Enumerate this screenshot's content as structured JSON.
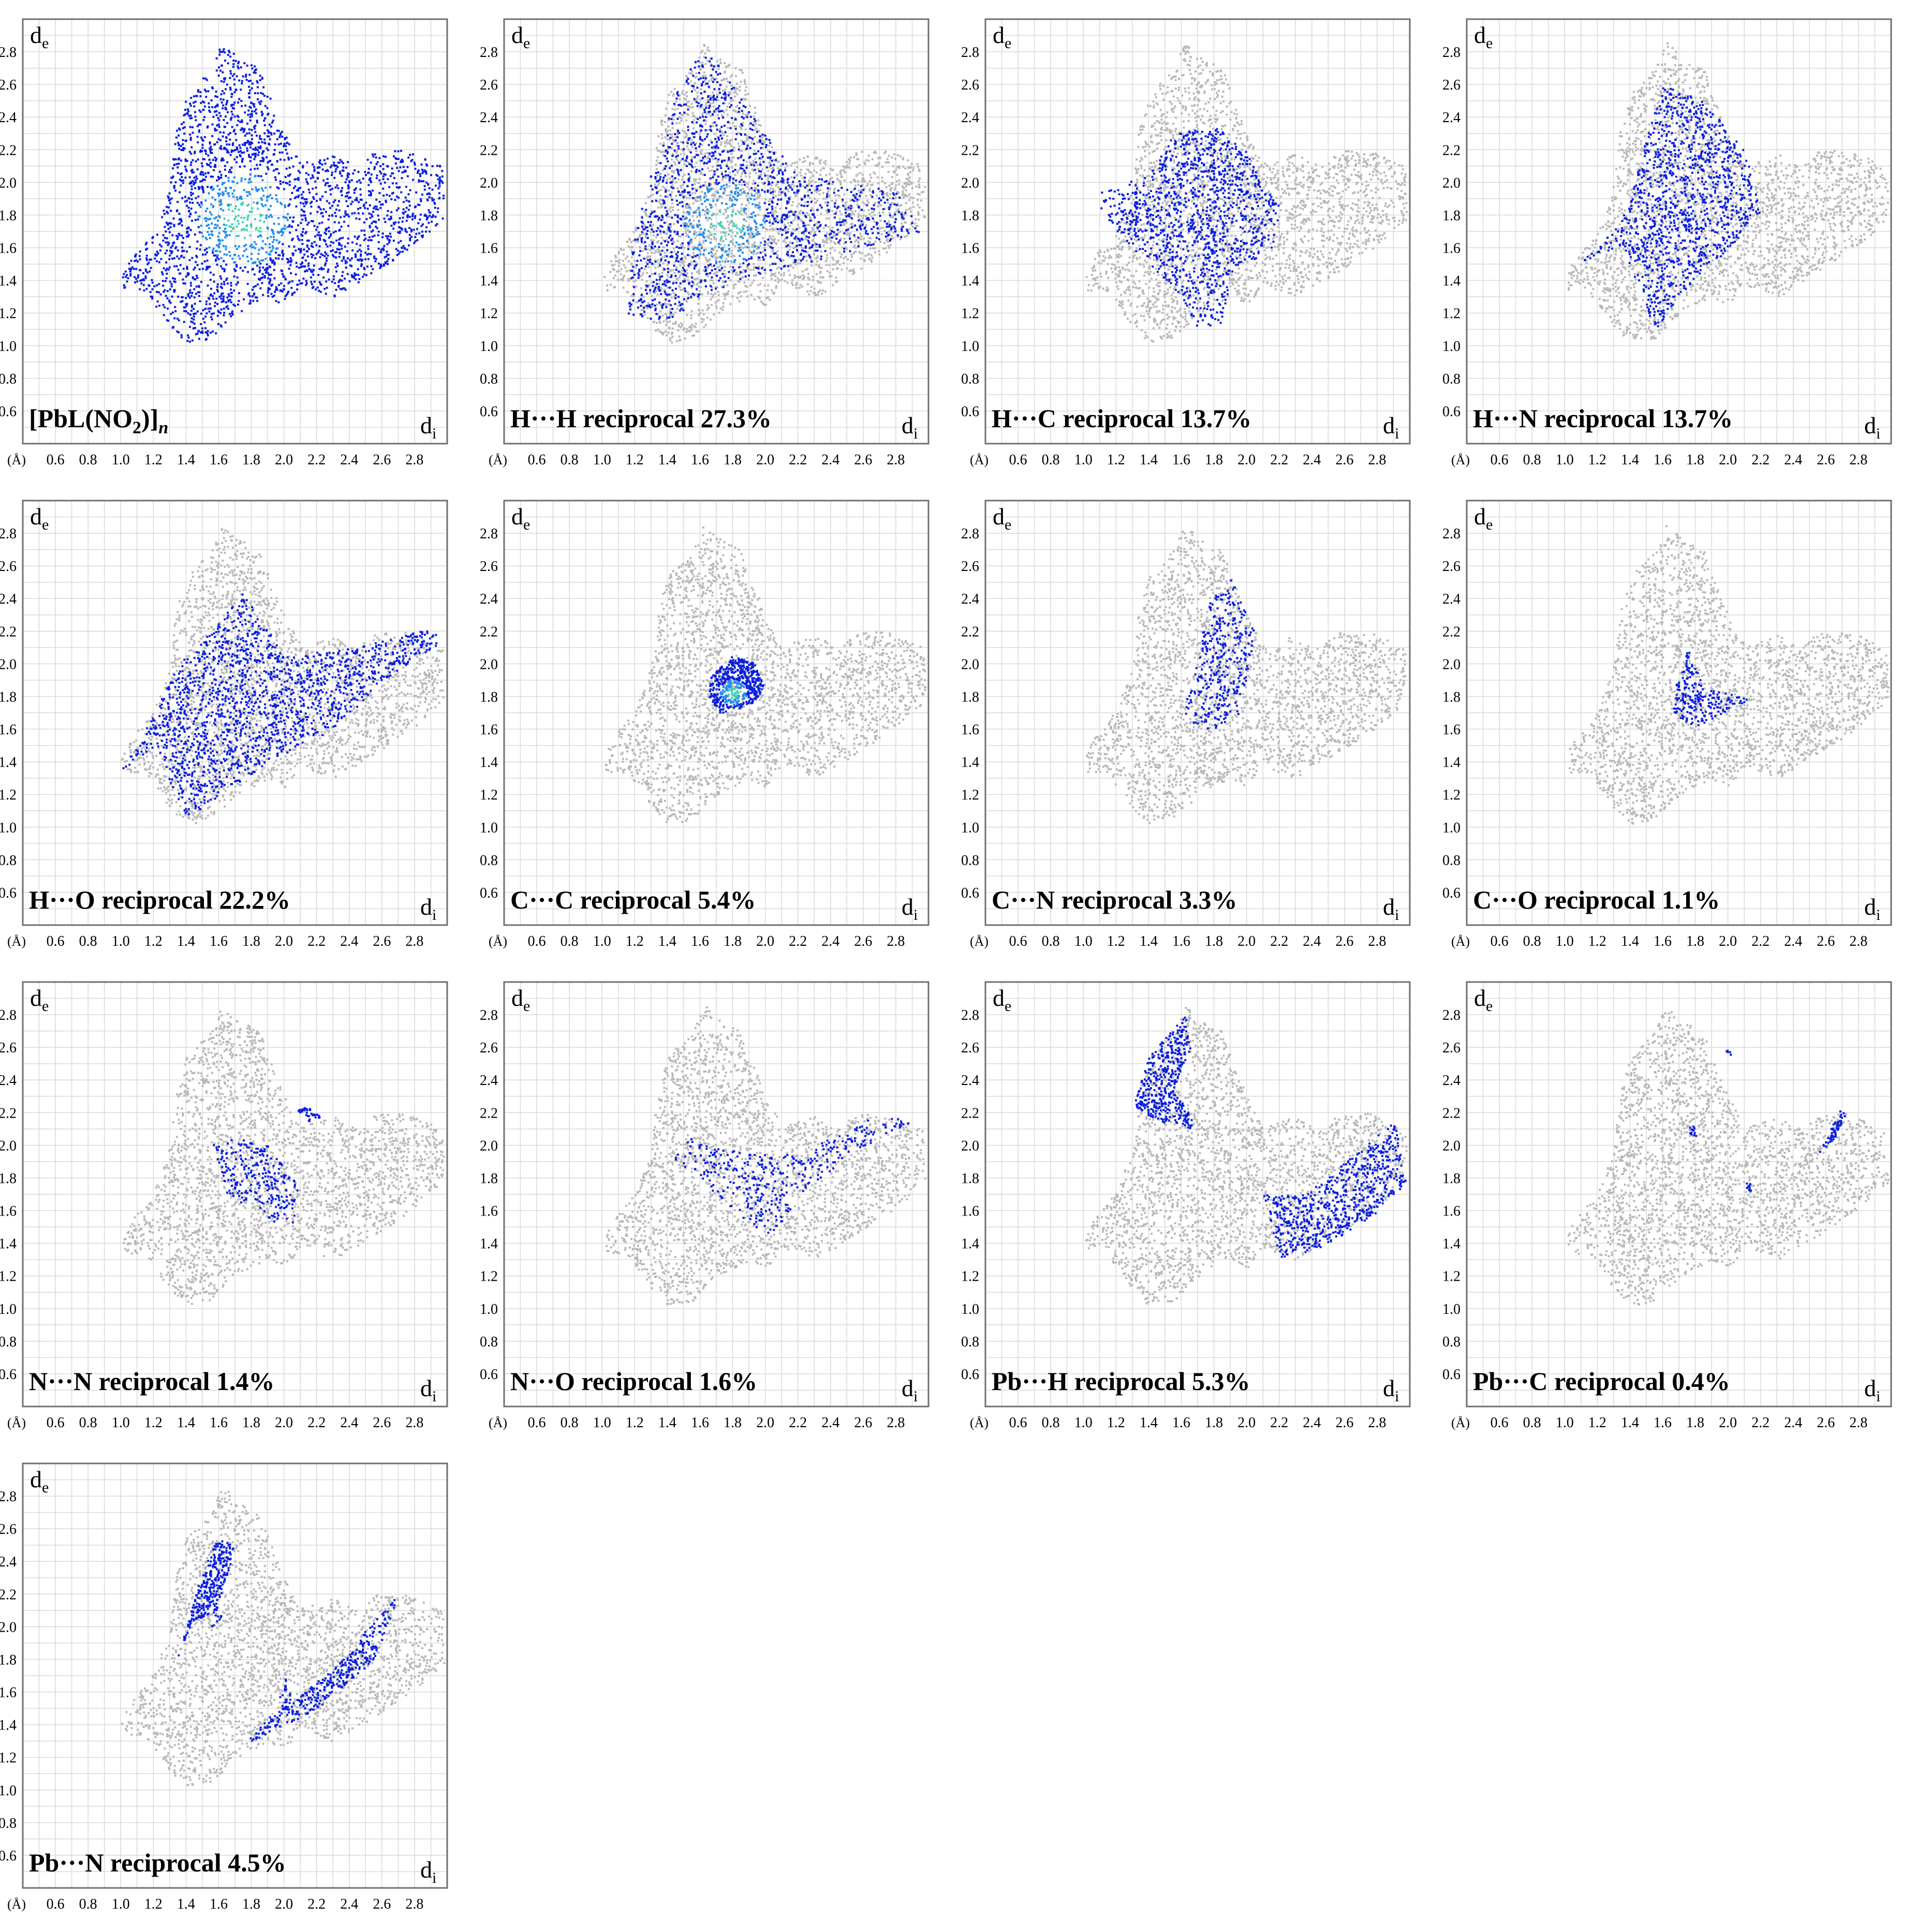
{
  "figure": {
    "x_unit": "(Å)",
    "x_axis_symbol": "d",
    "x_axis_subscript": "i",
    "y_axis_symbol": "d",
    "y_axis_subscript": "e"
  },
  "colors": {
    "background_points": "#b8b8b8",
    "highlight_low": "#0a1edc",
    "highlight_mid": "#1e8cf0",
    "highlight_high": "#3cd2b4",
    "grid": "#d9d9d9",
    "frame": "#6f6f6f"
  },
  "chart_data": [
    {
      "type": "scatter",
      "panel": 1,
      "label": "[PbL(NO2)]n",
      "label_parts": {
        "main": "[PbL(NO",
        "sub": "2",
        "close": ")]",
        "italic_sub": "n"
      },
      "percent": null,
      "contact": "all",
      "xlim": [
        0.4,
        3.0
      ],
      "ylim": [
        0.4,
        3.0
      ],
      "xticks": [
        "0.6",
        "0.8",
        "1.0",
        "1.2",
        "1.4",
        "1.6",
        "1.8",
        "2.0",
        "2.2",
        "2.4",
        "2.6",
        "2.8"
      ],
      "yticks": [
        "0.6",
        "0.8",
        "1.0",
        "1.2",
        "1.4",
        "1.6",
        "1.8",
        "2.0",
        "2.2",
        "2.4",
        "2.6",
        "2.8"
      ],
      "xlabel": "di",
      "ylabel": "de"
    },
    {
      "type": "scatter",
      "panel": 2,
      "label": "H···H reciprocal 27.3%",
      "contact": "H···H",
      "percent": 27.3,
      "xlim": [
        0.4,
        3.0
      ],
      "ylim": [
        0.4,
        3.0
      ]
    },
    {
      "type": "scatter",
      "panel": 3,
      "label": "H···C reciprocal 13.7%",
      "contact": "H···C",
      "percent": 13.7,
      "xlim": [
        0.4,
        3.0
      ],
      "ylim": [
        0.4,
        3.0
      ]
    },
    {
      "type": "scatter",
      "panel": 4,
      "label": "H···N reciprocal 13.7%",
      "contact": "H···N",
      "percent": 13.7,
      "xlim": [
        0.4,
        3.0
      ],
      "ylim": [
        0.4,
        3.0
      ]
    },
    {
      "type": "scatter",
      "panel": 5,
      "label": "H···O reciprocal 22.2%",
      "contact": "H···O",
      "percent": 22.2,
      "xlim": [
        0.4,
        3.0
      ],
      "ylim": [
        0.4,
        3.0
      ]
    },
    {
      "type": "scatter",
      "panel": 6,
      "label": "C···C reciprocal 5.4%",
      "contact": "C···C",
      "percent": 5.4,
      "xlim": [
        0.4,
        3.0
      ],
      "ylim": [
        0.4,
        3.0
      ]
    },
    {
      "type": "scatter",
      "panel": 7,
      "label": "C···N reciprocal 3.3%",
      "contact": "C···N",
      "percent": 3.3,
      "xlim": [
        0.4,
        3.0
      ],
      "ylim": [
        0.4,
        3.0
      ]
    },
    {
      "type": "scatter",
      "panel": 8,
      "label": "C···O reciprocal 1.1%",
      "contact": "C···O",
      "percent": 1.1,
      "xlim": [
        0.4,
        3.0
      ],
      "ylim": [
        0.4,
        3.0
      ]
    },
    {
      "type": "scatter",
      "panel": 9,
      "label": "N···N reciprocal 1.4%",
      "contact": "N···N",
      "percent": 1.4,
      "xlim": [
        0.4,
        3.0
      ],
      "ylim": [
        0.4,
        3.0
      ]
    },
    {
      "type": "scatter",
      "panel": 10,
      "label": "N···O reciprocal 1.6%",
      "contact": "N···O",
      "percent": 1.6,
      "xlim": [
        0.4,
        3.0
      ],
      "ylim": [
        0.4,
        3.0
      ]
    },
    {
      "type": "scatter",
      "panel": 11,
      "label": "Pb···H reciprocal 5.3%",
      "contact": "Pb···H",
      "percent": 5.3,
      "xlim": [
        0.4,
        3.0
      ],
      "ylim": [
        0.4,
        3.0
      ]
    },
    {
      "type": "scatter",
      "panel": 12,
      "label": "Pb···C reciprocal 0.4%",
      "contact": "Pb···C",
      "percent": 0.4,
      "xlim": [
        0.4,
        3.0
      ],
      "ylim": [
        0.4,
        3.0
      ]
    },
    {
      "type": "scatter",
      "panel": 13,
      "label": "Pb···N reciprocal 4.5%",
      "contact": "Pb···N",
      "percent": 4.5,
      "xlim": [
        0.4,
        3.0
      ],
      "ylim": [
        0.4,
        3.0
      ]
    }
  ]
}
